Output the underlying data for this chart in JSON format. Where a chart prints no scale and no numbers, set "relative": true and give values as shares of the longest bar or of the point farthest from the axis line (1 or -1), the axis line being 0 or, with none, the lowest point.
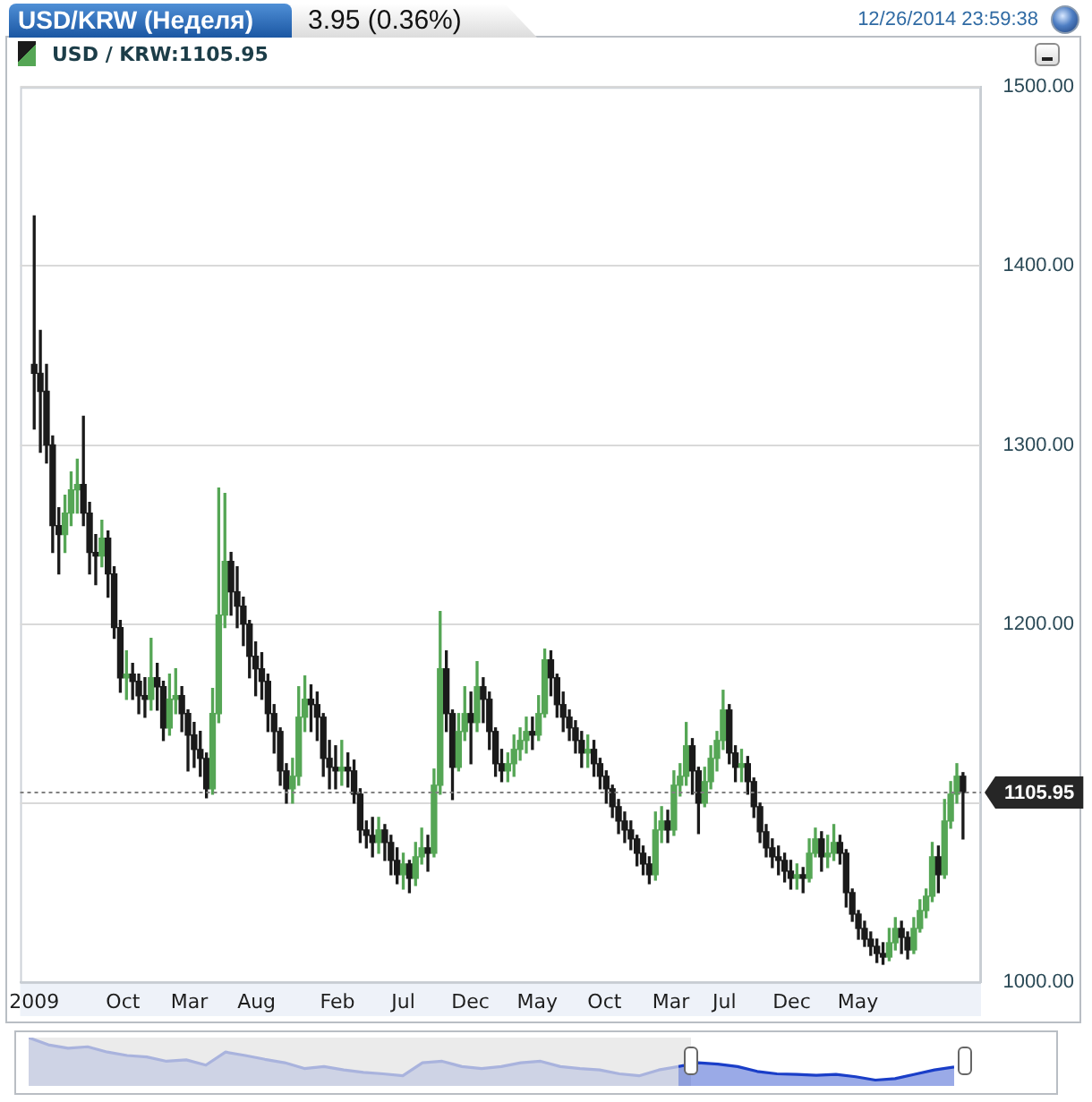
{
  "chart_data": [
    {
      "type": "candlestick",
      "title": "USD/KRW (Неделя)",
      "subtitle": "3.95 (0.36%)",
      "annotations": [
        "12/26/2014 23:59:38"
      ],
      "x": [
        "2009-03-13",
        "2009-03-27",
        "2009-04-10",
        "2009-04-24",
        "2009-05-08",
        "2009-05-22",
        "2009-06-05",
        "2009-06-19",
        "2009-07-03",
        "2009-07-17",
        "2009-07-31",
        "2009-08-14",
        "2009-08-28",
        "2009-09-11",
        "2009-09-25",
        "2009-10-09",
        "2009-10-23",
        "2009-11-06",
        "2009-11-20",
        "2009-12-04",
        "2009-12-18",
        "2010-01-01",
        "2010-01-15",
        "2010-01-29",
        "2010-02-12",
        "2010-02-26",
        "2010-03-12",
        "2010-03-26",
        "2010-04-09",
        "2010-04-23",
        "2010-05-07",
        "2010-05-21",
        "2010-06-04",
        "2010-06-18",
        "2010-07-02",
        "2010-07-16",
        "2010-07-30",
        "2010-08-13",
        "2010-08-27",
        "2010-09-10",
        "2010-09-24",
        "2010-10-08",
        "2010-10-22",
        "2010-11-05",
        "2010-11-19",
        "2010-12-03",
        "2010-12-17",
        "2010-12-31",
        "2011-01-14",
        "2011-01-28",
        "2011-02-11",
        "2011-02-25",
        "2011-03-11",
        "2011-03-25",
        "2011-04-08",
        "2011-04-22",
        "2011-05-06",
        "2011-05-20",
        "2011-06-03",
        "2011-06-17",
        "2011-07-01",
        "2011-07-15",
        "2011-07-29",
        "2011-08-12",
        "2011-08-26",
        "2011-09-09",
        "2011-09-23",
        "2011-10-07",
        "2011-10-21",
        "2011-11-04",
        "2011-11-18",
        "2011-12-02",
        "2011-12-16",
        "2011-12-30",
        "2012-01-13",
        "2012-01-27",
        "2012-02-10",
        "2012-02-24",
        "2012-03-09",
        "2012-03-23",
        "2012-04-06",
        "2012-04-20",
        "2012-05-04",
        "2012-05-18",
        "2012-06-01",
        "2012-06-15",
        "2012-06-29",
        "2012-07-13",
        "2012-07-27",
        "2012-08-10",
        "2012-08-24",
        "2012-09-07",
        "2012-09-21",
        "2012-10-05",
        "2012-10-19",
        "2012-11-02",
        "2012-11-16",
        "2012-11-30",
        "2012-12-14",
        "2012-12-28",
        "2013-01-11",
        "2013-01-25",
        "2013-02-08",
        "2013-02-22",
        "2013-03-08",
        "2013-03-22",
        "2013-04-05",
        "2013-04-19",
        "2013-05-03",
        "2013-05-17",
        "2013-05-31",
        "2013-06-14",
        "2013-06-28",
        "2013-07-12",
        "2013-07-26",
        "2013-08-09",
        "2013-08-23",
        "2013-09-06",
        "2013-09-20",
        "2013-10-04",
        "2013-10-18",
        "2013-11-01",
        "2013-11-15",
        "2013-11-29",
        "2013-12-13",
        "2013-12-27",
        "2014-01-10",
        "2014-01-24",
        "2014-02-07",
        "2014-02-21",
        "2014-03-07",
        "2014-03-21",
        "2014-04-04",
        "2014-04-18",
        "2014-05-02",
        "2014-05-16",
        "2014-05-30",
        "2014-06-13",
        "2014-06-27",
        "2014-07-11",
        "2014-07-25",
        "2014-08-08",
        "2014-08-22",
        "2014-09-05",
        "2014-09-19",
        "2014-10-03",
        "2014-10-17",
        "2014-10-31",
        "2014-11-14",
        "2014-11-28",
        "2014-12-12",
        "2014-12-26"
      ],
      "series": [
        {
          "name": "USD / KRW:1105.95",
          "ohlc": [
            [
              1345,
              1428,
              1309,
              1340
            ],
            [
              1340,
              1364,
              1296,
              1330
            ],
            [
              1330,
              1345,
              1290,
              1300
            ],
            [
              1300,
              1305,
              1240,
              1255
            ],
            [
              1255,
              1265,
              1228,
              1250
            ],
            [
              1250,
              1272,
              1240,
              1262
            ],
            [
              1262,
              1285,
              1255,
              1275
            ],
            [
              1275,
              1292,
              1262,
              1278
            ],
            [
              1278,
              1316,
              1255,
              1262
            ],
            [
              1262,
              1268,
              1228,
              1240
            ],
            [
              1240,
              1250,
              1222,
              1238
            ],
            [
              1238,
              1258,
              1232,
              1248
            ],
            [
              1248,
              1252,
              1215,
              1228
            ],
            [
              1228,
              1232,
              1192,
              1198
            ],
            [
              1198,
              1202,
              1162,
              1170
            ],
            [
              1170,
              1185,
              1158,
              1172
            ],
            [
              1172,
              1178,
              1158,
              1168
            ],
            [
              1168,
              1172,
              1150,
              1160
            ],
            [
              1160,
              1170,
              1148,
              1158
            ],
            [
              1158,
              1192,
              1152,
              1170
            ],
            [
              1170,
              1178,
              1152,
              1165
            ],
            [
              1165,
              1168,
              1135,
              1142
            ],
            [
              1142,
              1172,
              1138,
              1158
            ],
            [
              1158,
              1175,
              1150,
              1160
            ],
            [
              1160,
              1165,
              1140,
              1150
            ],
            [
              1150,
              1152,
              1118,
              1138
            ],
            [
              1138,
              1145,
              1120,
              1130
            ],
            [
              1130,
              1140,
              1115,
              1125
            ],
            [
              1125,
              1128,
              1103,
              1108
            ],
            [
              1108,
              1164,
              1105,
              1150
            ],
            [
              1150,
              1276,
              1145,
              1205
            ],
            [
              1205,
              1273,
              1198,
              1235
            ],
            [
              1235,
              1240,
              1205,
              1218
            ],
            [
              1218,
              1232,
              1198,
              1210
            ],
            [
              1210,
              1215,
              1188,
              1200
            ],
            [
              1200,
              1202,
              1170,
              1182
            ],
            [
              1182,
              1190,
              1160,
              1175
            ],
            [
              1175,
              1184,
              1158,
              1168
            ],
            [
              1168,
              1172,
              1140,
              1150
            ],
            [
              1150,
              1155,
              1128,
              1140
            ],
            [
              1140,
              1142,
              1110,
              1118
            ],
            [
              1118,
              1122,
              1100,
              1108
            ],
            [
              1108,
              1125,
              1100,
              1115
            ],
            [
              1115,
              1165,
              1110,
              1148
            ],
            [
              1148,
              1171,
              1140,
              1158
            ],
            [
              1158,
              1166,
              1140,
              1155
            ],
            [
              1155,
              1162,
              1135,
              1148
            ],
            [
              1148,
              1150,
              1115,
              1125
            ],
            [
              1125,
              1135,
              1108,
              1120
            ],
            [
              1120,
              1132,
              1108,
              1118
            ],
            [
              1118,
              1135,
              1110,
              1120
            ],
            [
              1120,
              1128,
              1109,
              1118
            ],
            [
              1118,
              1124,
              1100,
              1105
            ],
            [
              1105,
              1108,
              1078,
              1085
            ],
            [
              1085,
              1090,
              1075,
              1082
            ],
            [
              1082,
              1092,
              1070,
              1078
            ],
            [
              1078,
              1092,
              1072,
              1085
            ],
            [
              1085,
              1088,
              1068,
              1078
            ],
            [
              1078,
              1082,
              1060,
              1068
            ],
            [
              1068,
              1075,
              1055,
              1060
            ],
            [
              1060,
              1072,
              1052,
              1066
            ],
            [
              1066,
              1068,
              1050,
              1058
            ],
            [
              1058,
              1078,
              1054,
              1070
            ],
            [
              1070,
              1086,
              1066,
              1075
            ],
            [
              1075,
              1082,
              1062,
              1072
            ],
            [
              1072,
              1119,
              1070,
              1110
            ],
            [
              1110,
              1207,
              1105,
              1175
            ],
            [
              1175,
              1185,
              1140,
              1150
            ],
            [
              1150,
              1152,
              1102,
              1120
            ],
            [
              1120,
              1150,
              1118,
              1140
            ],
            [
              1140,
              1165,
              1135,
              1150
            ],
            [
              1150,
              1162,
              1122,
              1145
            ],
            [
              1145,
              1179,
              1140,
              1165
            ],
            [
              1165,
              1170,
              1145,
              1158
            ],
            [
              1158,
              1162,
              1130,
              1140
            ],
            [
              1140,
              1142,
              1115,
              1122
            ],
            [
              1122,
              1130,
              1112,
              1118
            ],
            [
              1118,
              1128,
              1112,
              1122
            ],
            [
              1122,
              1138,
              1115,
              1130
            ],
            [
              1130,
              1142,
              1124,
              1135
            ],
            [
              1135,
              1148,
              1128,
              1140
            ],
            [
              1140,
              1148,
              1130,
              1138
            ],
            [
              1138,
              1160,
              1135,
              1150
            ],
            [
              1150,
              1186,
              1148,
              1180
            ],
            [
              1180,
              1185,
              1160,
              1170
            ],
            [
              1170,
              1172,
              1148,
              1155
            ],
            [
              1155,
              1162,
              1140,
              1148
            ],
            [
              1148,
              1152,
              1135,
              1142
            ],
            [
              1142,
              1146,
              1128,
              1135
            ],
            [
              1135,
              1140,
              1120,
              1128
            ],
            [
              1128,
              1138,
              1120,
              1130
            ],
            [
              1130,
              1135,
              1115,
              1122
            ],
            [
              1122,
              1125,
              1108,
              1115
            ],
            [
              1115,
              1118,
              1100,
              1108
            ],
            [
              1108,
              1110,
              1092,
              1098
            ],
            [
              1098,
              1102,
              1083,
              1090
            ],
            [
              1090,
              1095,
              1078,
              1085
            ],
            [
              1085,
              1090,
              1074,
              1080
            ],
            [
              1080,
              1082,
              1065,
              1072
            ],
            [
              1072,
              1076,
              1060,
              1066
            ],
            [
              1066,
              1070,
              1055,
              1060
            ],
            [
              1060,
              1095,
              1057,
              1085
            ],
            [
              1085,
              1098,
              1078,
              1090
            ],
            [
              1090,
              1096,
              1078,
              1085
            ],
            [
              1085,
              1118,
              1082,
              1110
            ],
            [
              1110,
              1122,
              1104,
              1115
            ],
            [
              1115,
              1145,
              1110,
              1132
            ],
            [
              1132,
              1136,
              1105,
              1118
            ],
            [
              1118,
              1120,
              1083,
              1100
            ],
            [
              1100,
              1120,
              1098,
              1112
            ],
            [
              1112,
              1132,
              1108,
              1125
            ],
            [
              1125,
              1140,
              1118,
              1135
            ],
            [
              1135,
              1163,
              1130,
              1152
            ],
            [
              1152,
              1155,
              1122,
              1128
            ],
            [
              1128,
              1132,
              1112,
              1120
            ],
            [
              1120,
              1130,
              1112,
              1122
            ],
            [
              1122,
              1126,
              1105,
              1112
            ],
            [
              1112,
              1114,
              1092,
              1098
            ],
            [
              1098,
              1100,
              1078,
              1084
            ],
            [
              1084,
              1088,
              1070,
              1075
            ],
            [
              1075,
              1080,
              1064,
              1070
            ],
            [
              1070,
              1076,
              1060,
              1068
            ],
            [
              1068,
              1072,
              1056,
              1062
            ],
            [
              1062,
              1068,
              1052,
              1058
            ],
            [
              1058,
              1066,
              1052,
              1060
            ],
            [
              1060,
              1064,
              1050,
              1058
            ],
            [
              1058,
              1080,
              1056,
              1072
            ],
            [
              1072,
              1086,
              1070,
              1080
            ],
            [
              1080,
              1084,
              1062,
              1070
            ],
            [
              1070,
              1082,
              1064,
              1072
            ],
            [
              1072,
              1088,
              1068,
              1078
            ],
            [
              1078,
              1082,
              1066,
              1072
            ],
            [
              1072,
              1074,
              1042,
              1050
            ],
            [
              1050,
              1052,
              1034,
              1038
            ],
            [
              1038,
              1040,
              1024,
              1030
            ],
            [
              1030,
              1034,
              1020,
              1024
            ],
            [
              1024,
              1028,
              1015,
              1020
            ],
            [
              1020,
              1024,
              1011,
              1016
            ],
            [
              1016,
              1022,
              1010,
              1014
            ],
            [
              1014,
              1030,
              1012,
              1022
            ],
            [
              1022,
              1036,
              1018,
              1030
            ],
            [
              1030,
              1034,
              1016,
              1025
            ],
            [
              1025,
              1028,
              1013,
              1018
            ],
            [
              1018,
              1036,
              1016,
              1030
            ],
            [
              1030,
              1046,
              1028,
              1040
            ],
            [
              1040,
              1052,
              1036,
              1048
            ],
            [
              1048,
              1078,
              1045,
              1070
            ],
            [
              1070,
              1076,
              1050,
              1060
            ],
            [
              1060,
              1102,
              1058,
              1090
            ],
            [
              1090,
              1112,
              1086,
              1105
            ],
            [
              1105,
              1122,
              1100,
              1115
            ],
            [
              1115,
              1117,
              1080,
              1105.95
            ]
          ],
          "colors": [
            "#1a1a1a",
            "#1a1a1a",
            "#1a1a1a",
            "#1a1a1a",
            "#1a1a1a",
            "#55a655",
            "#55a655",
            "#55a655",
            "#1a1a1a",
            "#1a1a1a",
            "#1a1a1a",
            "#55a655",
            "#1a1a1a",
            "#1a1a1a",
            "#1a1a1a",
            "#55a655",
            "#1a1a1a",
            "#1a1a1a",
            "#1a1a1a",
            "#55a655",
            "#1a1a1a",
            "#1a1a1a",
            "#55a655",
            "#55a655",
            "#1a1a1a",
            "#1a1a1a",
            "#1a1a1a",
            "#1a1a1a",
            "#1a1a1a",
            "#55a655",
            "#55a655",
            "#55a655",
            "#1a1a1a",
            "#1a1a1a",
            "#1a1a1a",
            "#1a1a1a",
            "#1a1a1a",
            "#1a1a1a",
            "#1a1a1a",
            "#1a1a1a",
            "#1a1a1a",
            "#1a1a1a",
            "#55a655",
            "#55a655",
            "#55a655",
            "#1a1a1a",
            "#1a1a1a",
            "#1a1a1a",
            "#1a1a1a",
            "#1a1a1a",
            "#55a655",
            "#1a1a1a",
            "#1a1a1a",
            "#1a1a1a",
            "#1a1a1a",
            "#1a1a1a",
            "#55a655",
            "#1a1a1a",
            "#1a1a1a",
            "#1a1a1a",
            "#55a655",
            "#1a1a1a",
            "#55a655",
            "#55a655",
            "#1a1a1a",
            "#55a655",
            "#55a655",
            "#1a1a1a",
            "#1a1a1a",
            "#55a655",
            "#55a655",
            "#1a1a1a",
            "#55a655",
            "#1a1a1a",
            "#1a1a1a",
            "#1a1a1a",
            "#1a1a1a",
            "#55a655",
            "#55a655",
            "#55a655",
            "#55a655",
            "#1a1a1a",
            "#55a655",
            "#55a655",
            "#1a1a1a",
            "#1a1a1a",
            "#1a1a1a",
            "#1a1a1a",
            "#1a1a1a",
            "#1a1a1a",
            "#55a655",
            "#1a1a1a",
            "#1a1a1a",
            "#1a1a1a",
            "#1a1a1a",
            "#1a1a1a",
            "#1a1a1a",
            "#1a1a1a",
            "#1a1a1a",
            "#1a1a1a",
            "#1a1a1a",
            "#55a655",
            "#55a655",
            "#1a1a1a",
            "#55a655",
            "#55a655",
            "#55a655",
            "#1a1a1a",
            "#1a1a1a",
            "#55a655",
            "#55a655",
            "#55a655",
            "#55a655",
            "#1a1a1a",
            "#1a1a1a",
            "#55a655",
            "#1a1a1a",
            "#1a1a1a",
            "#1a1a1a",
            "#1a1a1a",
            "#1a1a1a",
            "#1a1a1a",
            "#1a1a1a",
            "#1a1a1a",
            "#55a655",
            "#1a1a1a",
            "#55a655",
            "#55a655",
            "#1a1a1a",
            "#55a655",
            "#55a655",
            "#1a1a1a",
            "#1a1a1a",
            "#1a1a1a",
            "#1a1a1a",
            "#1a1a1a",
            "#1a1a1a",
            "#1a1a1a",
            "#1a1a1a",
            "#55a655",
            "#55a655",
            "#1a1a1a",
            "#1a1a1a",
            "#55a655",
            "#55a655",
            "#55a655",
            "#55a655",
            "#1a1a1a",
            "#55a655",
            "#55a655",
            "#55a655",
            "#1a1a1a"
          ]
        }
      ],
      "xlim": [
        "2009-02-09",
        "2015-02-05"
      ],
      "xticks": [
        {
          "value": "2009-03-13",
          "label": "2009"
        },
        {
          "value": "2009-10",
          "label": "Oct"
        },
        {
          "value": "2010-03",
          "label": "Mar"
        },
        {
          "value": "2010-08",
          "label": "Aug"
        },
        {
          "value": "2011-02",
          "label": "Feb"
        },
        {
          "value": "2011-07",
          "label": "Jul"
        },
        {
          "value": "2011-12",
          "label": "Dec"
        },
        {
          "value": "2012-05",
          "label": "May"
        },
        {
          "value": "2012-10",
          "label": "Oct"
        },
        {
          "value": "2013-03",
          "label": "Mar"
        },
        {
          "value": "2013-07",
          "label": "Jul"
        },
        {
          "value": "2013-12",
          "label": "Dec"
        },
        {
          "value": "2014-05",
          "label": "May"
        }
      ],
      "ylim": [
        1000,
        1500
      ],
      "yticks": [
        {
          "value": 1000,
          "label": "1000.00"
        },
        {
          "value": 1100,
          "label": null
        },
        {
          "value": 1200,
          "label": "1200.00"
        },
        {
          "value": 1300,
          "label": "1300.00"
        },
        {
          "value": 1400,
          "label": "1400.00"
        },
        {
          "value": 1500,
          "label": "1500.00"
        }
      ],
      "ref_lines": [
        {
          "axis": "y",
          "value": 1105.95,
          "label": "1105.95",
          "color": "#808080",
          "line_style": "dotted"
        }
      ],
      "grid": "y",
      "legend": "top left"
    },
    {
      "type": "area",
      "relative": true,
      "categories": [
        null,
        null,
        null,
        null,
        null,
        null,
        null,
        null,
        null,
        null,
        null,
        null,
        null,
        null,
        null,
        null,
        null,
        null,
        null,
        null,
        null,
        null,
        null,
        null,
        null,
        null,
        null,
        null,
        null,
        null,
        null,
        null,
        null,
        null,
        null,
        null,
        null,
        null,
        null,
        null,
        null,
        null,
        null,
        null,
        null,
        null,
        null,
        null
      ],
      "series": [
        {
          "color": "#a9b3dd",
          "values": [
            1,
            0.85,
            0.78,
            0.81,
            0.7,
            0.63,
            0.6,
            0.51,
            0.54,
            0.43,
            0.7,
            0.63,
            0.55,
            0.48,
            0.36,
            0.4,
            0.33,
            0.28,
            0.25,
            0.21,
            0.48,
            0.51,
            0.4,
            0.36,
            0.4,
            0.48,
            0.51,
            0.4,
            0.36,
            0.33,
            0.25,
            0.21,
            0.33,
            0.4,
            null,
            null,
            null,
            null,
            null,
            null,
            null,
            null,
            null,
            null,
            null,
            null,
            null,
            null
          ]
        },
        {
          "color": "#1a3ec8",
          "values": [
            null,
            null,
            null,
            null,
            null,
            null,
            null,
            null,
            null,
            null,
            null,
            null,
            null,
            null,
            null,
            null,
            null,
            null,
            null,
            null,
            null,
            null,
            null,
            null,
            null,
            null,
            null,
            null,
            null,
            null,
            null,
            null,
            null,
            0.4,
            0.48,
            0.45,
            0.4,
            0.3,
            0.25,
            0.24,
            0.22,
            0.24,
            0.19,
            0.12,
            0.15,
            0.24,
            0.33,
            0.39
          ]
        }
      ]
    }
  ]
}
